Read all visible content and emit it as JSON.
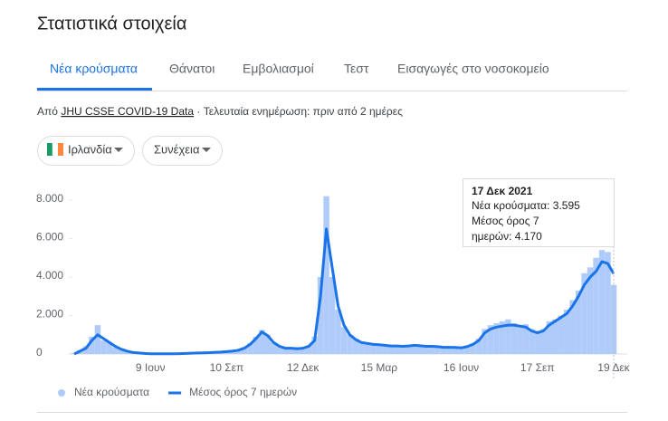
{
  "header": {
    "title": "Στατιστικά στοιχεία"
  },
  "tabs": [
    "Νέα κρούσματα",
    "Θάνατοι",
    "Εμβολιασμοί",
    "Τεστ",
    "Εισαγωγές στο νοσοκομείο"
  ],
  "source": {
    "prefix": "Από",
    "link": "JHU CSSE COVID-19 Data",
    "suffix": "· Τελευταία ενημέρωση: πριν από 2 ημέρες"
  },
  "dropdowns": [
    "Ιρλανδία",
    "Συνέχεια"
  ],
  "tooltip": {
    "date": "17 Δεκ 2021",
    "lines": [
      "Νέα κρούσματα: 3.595",
      "Μέσος όρος 7",
      "ημερών: 4.170"
    ]
  },
  "chart_data": {
    "type": "bar-line",
    "categories": [
      null,
      null,
      null,
      null,
      null,
      null,
      null,
      null,
      null,
      null,
      null,
      null,
      null,
      "9 Ιουν",
      null,
      null,
      null,
      null,
      null,
      null,
      null,
      null,
      null,
      null,
      null,
      null,
      "10 Σεπ",
      null,
      null,
      null,
      null,
      null,
      null,
      null,
      null,
      null,
      null,
      null,
      null,
      "12 Δεκ",
      null,
      null,
      null,
      null,
      null,
      null,
      null,
      null,
      null,
      null,
      null,
      null,
      "15 Μαρ",
      null,
      null,
      null,
      null,
      null,
      null,
      null,
      null,
      null,
      null,
      null,
      null,
      null,
      "16 Ιουν",
      null,
      null,
      null,
      null,
      null,
      null,
      null,
      null,
      null,
      null,
      null,
      null,
      "17 Σεπ",
      null,
      null,
      null,
      null,
      null,
      null,
      null,
      null,
      null,
      null,
      null,
      null,
      "19 Δεκ"
    ],
    "series": [
      {
        "name": "Νέα κρούσματα",
        "color": "#aecbfa",
        "kind": "bar",
        "values": [
          50,
          200,
          400,
          900,
          1500,
          700,
          600,
          350,
          250,
          150,
          80,
          50,
          30,
          20,
          10,
          10,
          15,
          15,
          25,
          30,
          40,
          60,
          60,
          80,
          100,
          110,
          130,
          160,
          220,
          350,
          550,
          900,
          1250,
          1000,
          600,
          420,
          300,
          320,
          300,
          330,
          450,
          900,
          4000,
          8200,
          4000,
          2300,
          1400,
          1000,
          800,
          650,
          600,
          520,
          500,
          460,
          440,
          430,
          420,
          450,
          470,
          440,
          420,
          410,
          390,
          360,
          360,
          350,
          330,
          400,
          550,
          800,
          1300,
          1500,
          1600,
          1700,
          1800,
          1600,
          1500,
          1550,
          1300,
          1200,
          1300,
          1700,
          1800,
          2000,
          2300,
          2800,
          3300,
          4200,
          4500,
          5000,
          5400,
          5300,
          3595
        ]
      },
      {
        "name": "Μέσος όρος 7 ημερών",
        "color": "#1a73e8",
        "kind": "line",
        "values": [
          0,
          150,
          300,
          700,
          1000,
          800,
          600,
          400,
          250,
          150,
          80,
          50,
          30,
          15,
          10,
          10,
          10,
          15,
          20,
          30,
          40,
          50,
          60,
          70,
          90,
          100,
          120,
          150,
          200,
          300,
          500,
          800,
          1150,
          950,
          600,
          400,
          300,
          300,
          280,
          300,
          400,
          700,
          3000,
          6500,
          4500,
          2500,
          1500,
          1000,
          750,
          600,
          550,
          500,
          480,
          450,
          420,
          420,
          400,
          420,
          450,
          430,
          400,
          400,
          380,
          350,
          350,
          340,
          320,
          380,
          500,
          700,
          1100,
          1300,
          1400,
          1450,
          1500,
          1500,
          1450,
          1400,
          1200,
          1100,
          1200,
          1500,
          1700,
          1900,
          2100,
          2500,
          3000,
          3600,
          4000,
          4300,
          4800,
          4700,
          4170
        ]
      }
    ],
    "ylim": [
      0,
      8000
    ],
    "yticks": [
      0,
      {
        "value": 2000,
        "label": "2.000"
      },
      {
        "value": 4000,
        "label": "4.000"
      },
      {
        "value": 6000,
        "label": "6.000"
      },
      {
        "value": 8000,
        "label": "8.000"
      }
    ],
    "grid": false
  }
}
